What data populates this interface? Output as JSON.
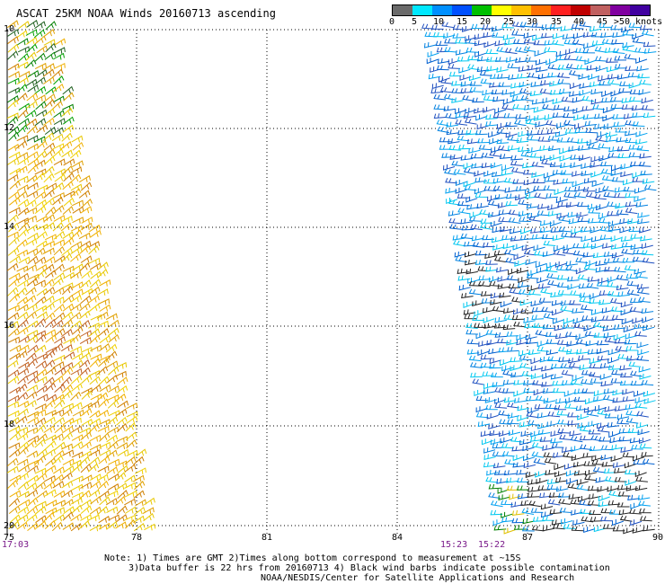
{
  "title": "ASCAT 25KM NOAA Winds 20160713 ascending",
  "scale": {
    "labels": [
      "0",
      "5",
      "10",
      "15",
      "20",
      "25",
      "30",
      "35",
      "40",
      "45",
      ">50 knots"
    ],
    "colors": [
      "#6a6a6a",
      "#00e8ff",
      "#0090ff",
      "#0050ff",
      "#00c000",
      "#ffff00",
      "#ffc000",
      "#ff7000",
      "#ff2020",
      "#c00000",
      "#c06060",
      "#8000a0",
      "#4000a0"
    ]
  },
  "latitude_labels": [
    "10",
    "12",
    "14",
    "16",
    "18",
    "20"
  ],
  "longitude_labels": [
    "75",
    "78",
    "81",
    "84",
    "87",
    "90"
  ],
  "time_labels": [
    "17:03",
    "15:23",
    "15:22"
  ],
  "notes": {
    "line1": "Note: 1) Times are GMT 2)Times along bottom correspond to measurement at ~15S",
    "line2": "3)Data buffer is 22 hrs from 20160713 4) Black wind barbs indicate possible contamination",
    "line3": "NOAA/NESDIS/Center for Satellite Applications and Research"
  }
}
